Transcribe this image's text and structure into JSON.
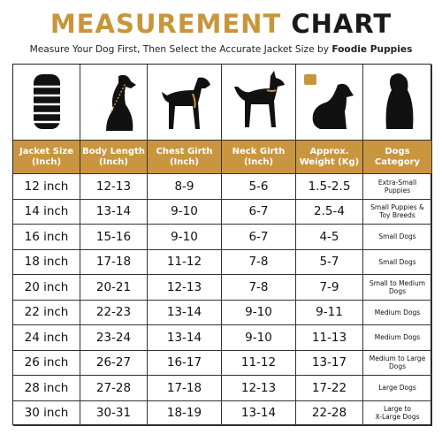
{
  "header": {
    "title_part1": "MEASUREMENT",
    "title_part2": "CHART",
    "subtitle": "Measure Your Dog First, Then Select the Accurate Jacket Size by",
    "brand": "Foodie Puppies"
  },
  "table": {
    "header": [
      "Jacket Size\n(Inch)",
      "Body Length\n(Inch)",
      "Chest Girth\n(Inch)",
      "Neck Girth\n(Inch)",
      "Approx.\nWeight (Kg)",
      "Dogs\nCategory"
    ],
    "rows": [
      [
        "12 inch",
        "12-13",
        "8-9",
        "5-6",
        "1.5-2.5",
        "Extra-Small\nPuppies"
      ],
      [
        "14 inch",
        "13-14",
        "9-10",
        "6-7",
        "2.5-4",
        "Small Puppies &\nToy Breeds"
      ],
      [
        "16 inch",
        "15-16",
        "9-10",
        "6-7",
        "4-5",
        "Small Dogs"
      ],
      [
        "18 inch",
        "17-18",
        "11-12",
        "7-8",
        "5-7",
        "Small Dogs"
      ],
      [
        "20 inch",
        "20-21",
        "12-13",
        "7-8",
        "7-9",
        "Small to Medium\nDogs"
      ],
      [
        "22 inch",
        "22-23",
        "13-14",
        "9-10",
        "9-11",
        "Medium Dogs"
      ],
      [
        "24 inch",
        "23-24",
        "13-14",
        "9-10",
        "11-13",
        "Medium Dogs"
      ],
      [
        "26 inch",
        "26-27",
        "16-17",
        "11-12",
        "13-17",
        "Medium to Large\nDogs"
      ],
      [
        "28 inch",
        "27-28",
        "17-18",
        "12-13",
        "17-22",
        "Large Dogs"
      ],
      [
        "30 inch",
        "30-31",
        "18-19",
        "13-14",
        "22-28",
        "Large to\nX-Large Dogs"
      ]
    ]
  }
}
